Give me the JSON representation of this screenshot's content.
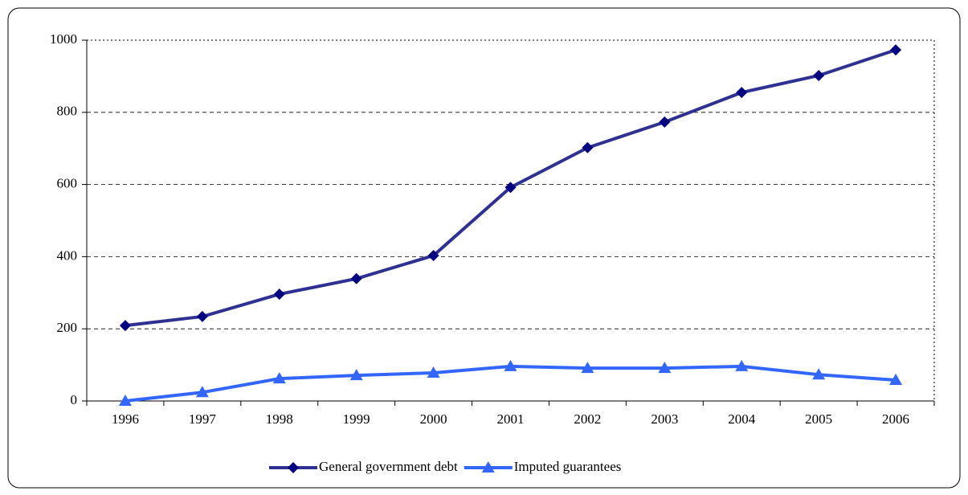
{
  "chart_data": {
    "type": "line",
    "categories": [
      "1996",
      "1997",
      "1998",
      "1999",
      "2000",
      "2001",
      "2002",
      "2003",
      "2004",
      "2005",
      "2006"
    ],
    "series": [
      {
        "name": "General government debt",
        "color": "#2e3192",
        "marker": "diamond",
        "marker_color": "#000080",
        "values": [
          209,
          234,
          296,
          339,
          403,
          592,
          702,
          773,
          855,
          902,
          973
        ]
      },
      {
        "name": "Imputed guarantees",
        "color": "#3366ff",
        "marker": "triangle",
        "marker_color": "#3366ff",
        "values": [
          0,
          24,
          62,
          71,
          78,
          96,
          91,
          91,
          96,
          73,
          58
        ]
      }
    ],
    "ylim": [
      0,
      1000
    ],
    "yticks": [
      0,
      200,
      400,
      600,
      800,
      1000
    ],
    "grid": true,
    "legend": "bottom"
  }
}
